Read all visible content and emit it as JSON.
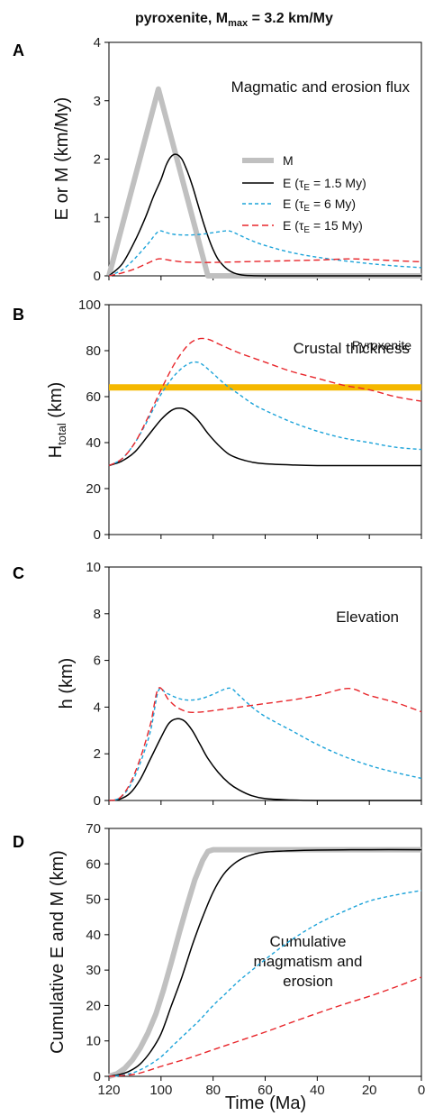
{
  "figure": {
    "title_main": "pyroxenite, M",
    "title_sub": "max",
    "title_rest": " = 3.2 km/My"
  },
  "legend": {
    "m_label": "M",
    "e1_label": "E (τ",
    "e1_sub": "E",
    "e1_rest": " = 1.5 My)",
    "e2_label": "E (τ",
    "e2_sub": "E",
    "e2_rest": " = 6 My)",
    "e3_label": "E (τ",
    "e3_sub": "E",
    "e3_rest": " = 15 My)"
  },
  "colors": {
    "M": "#c0c0c0",
    "E1": "#000000",
    "E2": "#1ca3d9",
    "E3": "#e8262b",
    "pyroxenite": "#f5b800"
  },
  "xaxis": {
    "label": "Time (Ma)",
    "ticks": [
      120,
      100,
      80,
      60,
      40,
      20,
      0
    ],
    "reversed": true
  },
  "panels": [
    {
      "letter": "A",
      "title": "Magmatic and erosion flux",
      "ylabel": "E or M (km/My)",
      "yticks": [
        0,
        1,
        2,
        3,
        4
      ],
      "ylim": [
        0,
        4
      ]
    },
    {
      "letter": "B",
      "title": "Crustal thickness",
      "ylabel_main": "H",
      "ylabel_sub": "total",
      "ylabel_rest": "  (km)",
      "yticks": [
        0,
        20,
        40,
        60,
        80,
        100
      ],
      "ylim": [
        0,
        100
      ],
      "annotation": "Pyroxenite"
    },
    {
      "letter": "C",
      "title": "Elevation",
      "ylabel": "h (km)",
      "yticks": [
        0,
        2,
        4,
        6,
        8,
        10
      ],
      "ylim": [
        0,
        10
      ]
    },
    {
      "letter": "D",
      "title_lines": [
        "Cumulative",
        "magmatism and",
        "erosion"
      ],
      "ylabel": "Cumulative E and M (km)",
      "yticks": [
        0,
        10,
        20,
        30,
        40,
        50,
        60,
        70
      ],
      "ylim": [
        0,
        70
      ]
    }
  ],
  "chart_data": [
    {
      "type": "line",
      "title": "Magmatic and erosion flux",
      "xlabel": "",
      "ylabel": "E or M (km/My)",
      "xlim": [
        120,
        0
      ],
      "ylim": [
        0,
        4
      ],
      "series": [
        {
          "name": "M",
          "x": [
            120,
            101,
            82,
            0
          ],
          "y": [
            0,
            3.2,
            0,
            0
          ]
        },
        {
          "name": "E (τE = 1.5 My)",
          "x": [
            120,
            115,
            110,
            106,
            103,
            100,
            98,
            96,
            94,
            92,
            90,
            88,
            86,
            84,
            82,
            80,
            78,
            75,
            72,
            68,
            60,
            40,
            0
          ],
          "y": [
            0,
            0.2,
            0.6,
            1.0,
            1.35,
            1.65,
            1.9,
            2.05,
            2.08,
            2.0,
            1.8,
            1.55,
            1.25,
            0.95,
            0.68,
            0.45,
            0.28,
            0.13,
            0.05,
            0.01,
            0,
            0,
            0
          ]
        },
        {
          "name": "E (τE = 6 My)",
          "x": [
            120,
            115,
            110,
            105,
            101,
            98,
            95,
            90,
            85,
            80,
            75,
            73,
            70,
            65,
            60,
            50,
            40,
            30,
            20,
            10,
            0
          ],
          "y": [
            0,
            0.1,
            0.3,
            0.55,
            0.76,
            0.74,
            0.71,
            0.7,
            0.71,
            0.74,
            0.77,
            0.76,
            0.7,
            0.6,
            0.52,
            0.4,
            0.32,
            0.26,
            0.21,
            0.17,
            0.14
          ]
        },
        {
          "name": "E (τE = 15 My)",
          "x": [
            120,
            115,
            110,
            105,
            101,
            97,
            92,
            85,
            80,
            70,
            60,
            50,
            40,
            28,
            20,
            10,
            0
          ],
          "y": [
            0,
            0.05,
            0.12,
            0.22,
            0.29,
            0.27,
            0.24,
            0.23,
            0.23,
            0.24,
            0.25,
            0.26,
            0.27,
            0.29,
            0.28,
            0.26,
            0.24
          ]
        }
      ]
    },
    {
      "type": "line",
      "title": "Crustal thickness",
      "xlabel": "",
      "ylabel": "Htotal (km)",
      "xlim": [
        120,
        0
      ],
      "ylim": [
        0,
        100
      ],
      "reference_line": {
        "name": "Pyroxenite",
        "y": 64
      },
      "series": [
        {
          "name": "E (τE = 1.5 My)",
          "x": [
            120,
            115,
            110,
            105,
            100,
            96,
            93,
            90,
            86,
            82,
            78,
            74,
            70,
            65,
            60,
            50,
            40,
            20,
            0
          ],
          "y": [
            30,
            32,
            36,
            43,
            50,
            54,
            55,
            54,
            50,
            44,
            39,
            35,
            33,
            31.5,
            30.8,
            30.3,
            30,
            30,
            30
          ]
        },
        {
          "name": "E (τE = 6 My)",
          "x": [
            120,
            115,
            110,
            105,
            100,
            95,
            90,
            86,
            83,
            80,
            75,
            70,
            65,
            60,
            50,
            40,
            30,
            20,
            10,
            0
          ],
          "y": [
            30,
            33,
            40,
            50,
            61,
            69,
            74,
            75,
            73,
            70,
            65,
            61,
            57,
            54,
            49,
            45,
            42,
            40,
            38,
            37
          ]
        },
        {
          "name": "E (τE = 15 My)",
          "x": [
            120,
            115,
            110,
            105,
            100,
            95,
            90,
            86,
            82,
            78,
            70,
            60,
            50,
            40,
            30,
            20,
            10,
            0
          ],
          "y": [
            30,
            33,
            40,
            51,
            63,
            74,
            82,
            85,
            85,
            83,
            79,
            75,
            71,
            68,
            65,
            63,
            60,
            58
          ]
        }
      ]
    },
    {
      "type": "line",
      "title": "Elevation",
      "xlabel": "",
      "ylabel": "h (km)",
      "xlim": [
        120,
        0
      ],
      "ylim": [
        0,
        10
      ],
      "series": [
        {
          "name": "E (τE = 1.5 My)",
          "x": [
            120,
            116,
            112,
            108,
            104,
            100,
            97,
            94,
            91,
            88,
            85,
            82,
            78,
            74,
            70,
            65,
            60,
            50,
            40,
            20,
            0
          ],
          "y": [
            0,
            0.05,
            0.3,
            0.9,
            1.8,
            2.7,
            3.3,
            3.5,
            3.4,
            3.0,
            2.4,
            1.8,
            1.2,
            0.75,
            0.45,
            0.2,
            0.08,
            0.02,
            0,
            0,
            0
          ]
        },
        {
          "name": "E (τE = 6 My)",
          "x": [
            120,
            116,
            112,
            108,
            104,
            101,
            98,
            94,
            90,
            85,
            80,
            76,
            73,
            70,
            65,
            60,
            50,
            40,
            30,
            20,
            10,
            0
          ],
          "y": [
            0,
            0.1,
            0.6,
            1.6,
            3.0,
            4.7,
            4.6,
            4.4,
            4.3,
            4.35,
            4.55,
            4.75,
            4.8,
            4.5,
            4.0,
            3.6,
            3.0,
            2.4,
            1.9,
            1.5,
            1.2,
            0.95
          ]
        },
        {
          "name": "E (τE = 15 My)",
          "x": [
            120,
            116,
            112,
            108,
            104,
            101,
            97,
            94,
            90,
            86,
            80,
            70,
            60,
            50,
            40,
            28,
            20,
            10,
            0
          ],
          "y": [
            0,
            0.1,
            0.7,
            1.8,
            3.3,
            4.8,
            4.3,
            4.0,
            3.8,
            3.78,
            3.85,
            4.0,
            4.15,
            4.3,
            4.5,
            4.8,
            4.5,
            4.2,
            3.8
          ]
        }
      ]
    },
    {
      "type": "line",
      "title": "Cumulative magmatism and erosion",
      "xlabel": "Time (Ma)",
      "ylabel": "Cumulative E and M (km)",
      "xlim": [
        120,
        0
      ],
      "ylim": [
        0,
        70
      ],
      "series": [
        {
          "name": "M",
          "x": [
            120,
            117,
            114,
            111,
            108,
            105,
            102,
            99,
            96,
            93,
            90,
            87,
            84,
            82,
            80,
            60,
            40,
            20,
            0
          ],
          "y": [
            0,
            0.7,
            2.2,
            4.6,
            8.0,
            12.3,
            17.6,
            24.5,
            32.3,
            40.5,
            48.3,
            55.5,
            61.0,
            63.5,
            64,
            64,
            64,
            64,
            64
          ]
        },
        {
          "name": "E (τE = 1.5 My)",
          "x": [
            120,
            116,
            112,
            108,
            104,
            100,
            96,
            92,
            88,
            84,
            80,
            76,
            72,
            68,
            64,
            60,
            50,
            40,
            20,
            0
          ],
          "y": [
            0,
            0.5,
            1.5,
            3.5,
            7,
            12,
            20,
            28,
            37,
            45,
            52,
            57,
            60,
            61.8,
            62.8,
            63.3,
            63.7,
            63.9,
            64,
            64
          ]
        },
        {
          "name": "E (τE = 6 My)",
          "x": [
            120,
            115,
            110,
            105,
            100,
            95,
            90,
            85,
            80,
            75,
            70,
            65,
            60,
            50,
            40,
            30,
            20,
            10,
            0
          ],
          "y": [
            0,
            0.3,
            1.2,
            3.0,
            5.5,
            9.0,
            12.5,
            16,
            20,
            23.5,
            27,
            30,
            33,
            38.5,
            43,
            46.5,
            49.5,
            51.2,
            52.5
          ]
        },
        {
          "name": "E (τE = 15 My)",
          "x": [
            120,
            115,
            110,
            105,
            100,
            90,
            80,
            70,
            60,
            50,
            40,
            30,
            20,
            10,
            0
          ],
          "y": [
            0,
            0.2,
            0.6,
            1.6,
            2.8,
            5.0,
            7.5,
            10,
            12.5,
            15.2,
            17.8,
            20.3,
            22.6,
            25.2,
            28
          ]
        }
      ]
    }
  ]
}
